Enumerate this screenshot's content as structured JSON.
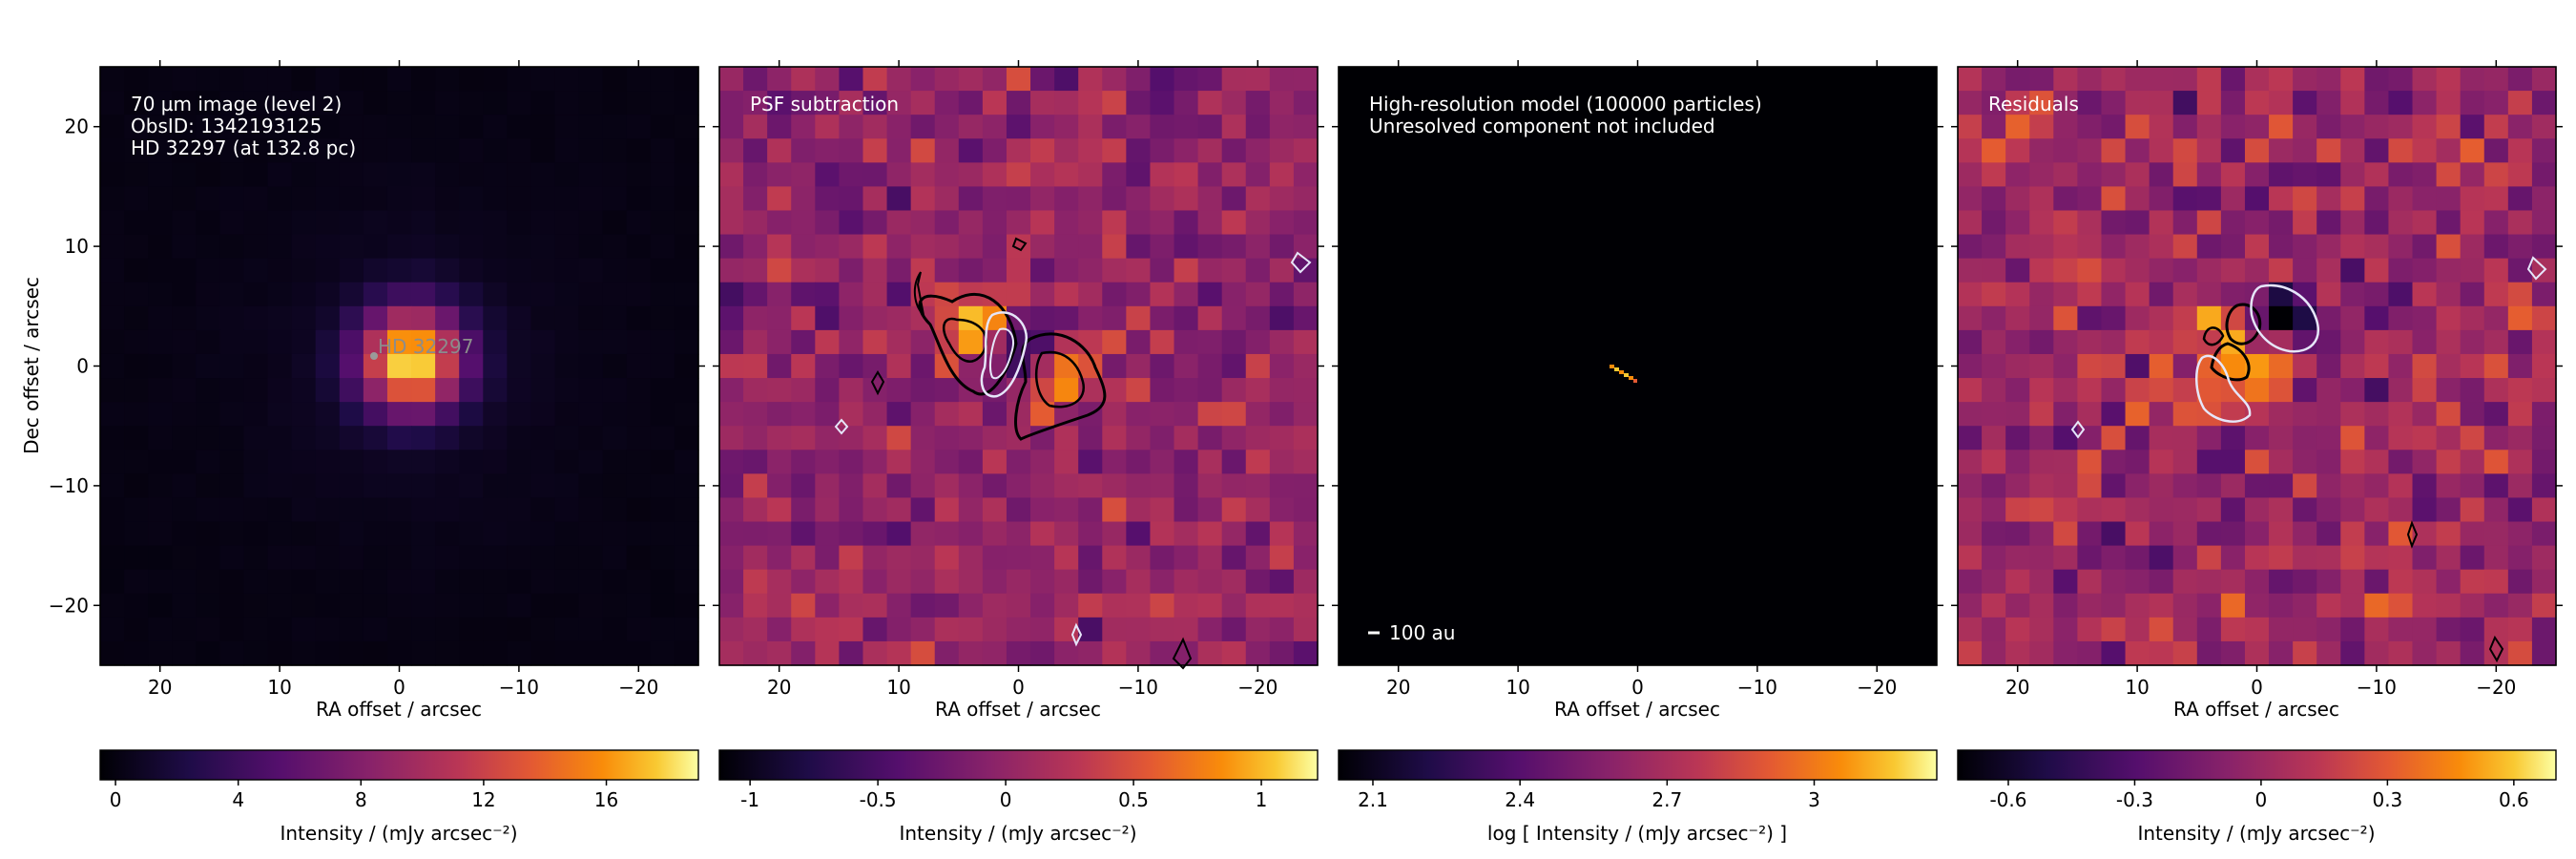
{
  "chart_data": [
    {
      "type": "heatmap",
      "title": "",
      "annotations": [
        "70 µm image (level 2)",
        "ObsID: 1342193125",
        "HD 32297 (at 132.8 pc)"
      ],
      "source_label": "HD 32297",
      "xlabel": "RA offset / arcsec",
      "ylabel": "Dec offset / arcsec",
      "xlim": [
        25,
        -25
      ],
      "ylim": [
        -25,
        25
      ],
      "xticks": [
        20,
        10,
        0,
        -10,
        -20
      ],
      "xtick_labels": [
        "20",
        "10",
        "0",
        "−10",
        "−20"
      ],
      "yticks": [
        20,
        10,
        0,
        -10,
        -20
      ],
      "ytick_labels": [
        "20",
        "10",
        "0",
        "−10",
        "−20"
      ],
      "peak": {
        "x": -1.0,
        "y": 0.5,
        "value": 18.0
      },
      "colormap": "inferno",
      "colorbar": {
        "label": "Intensity / (mJy arcsec⁻²)",
        "range": [
          -0.5,
          19.0
        ],
        "ticks": [
          0,
          4,
          8,
          12,
          16
        ],
        "tick_labels": [
          "0",
          "4",
          "8",
          "12",
          "16"
        ]
      }
    },
    {
      "type": "heatmap",
      "title": "",
      "annotations": [
        "PSF subtraction"
      ],
      "xlabel": "RA offset / arcsec",
      "xlim": [
        25,
        -25
      ],
      "ylim": [
        -25,
        25
      ],
      "xticks": [
        20,
        10,
        0,
        -10,
        -20
      ],
      "xtick_labels": [
        "20",
        "10",
        "0",
        "−10",
        "−20"
      ],
      "blobs": [
        {
          "x": 3.0,
          "y": 3.0,
          "value": 1.15
        },
        {
          "x": -3.5,
          "y": -1.0,
          "value": 1.1
        },
        {
          "x": 0.0,
          "y": 1.0,
          "value": -1.1
        }
      ],
      "contours_black": [
        {
          "x": 3.0,
          "y": 3.0
        },
        {
          "x": -4.0,
          "y": -2.0
        }
      ],
      "contours_white": [
        {
          "x": 0.0,
          "y": 1.0
        }
      ],
      "colormap": "inferno",
      "colorbar": {
        "label": "Intensity / (mJy arcsec⁻²)",
        "range": [
          -1.12,
          1.22
        ],
        "ticks": [
          -1,
          -0.5,
          0,
          0.5,
          1
        ],
        "tick_labels": [
          "-1",
          "-0.5",
          "0",
          "0.5",
          "1"
        ]
      }
    },
    {
      "type": "heatmap",
      "title": "",
      "annotations": [
        "High-resolution model (100000 particles)",
        "Unresolved component not included"
      ],
      "scalebar_label": "100 au",
      "xlabel": "RA offset / arcsec",
      "xlim": [
        25,
        -25
      ],
      "ylim": [
        -25,
        25
      ],
      "xticks": [
        20,
        10,
        0,
        -10,
        -20
      ],
      "xtick_labels": [
        "20",
        "10",
        "0",
        "−10",
        "−20"
      ],
      "colormap": "inferno",
      "colorbar": {
        "label": "log [ Intensity / (mJy arcsec⁻²) ]",
        "range": [
          2.03,
          3.25
        ],
        "ticks": [
          2.1,
          2.4,
          2.7,
          3.0
        ],
        "tick_labels": [
          "2.1",
          "2.4",
          "2.7",
          "3"
        ]
      }
    },
    {
      "type": "heatmap",
      "title": "",
      "annotations": [
        "Residuals"
      ],
      "xlabel": "RA offset / arcsec",
      "xlim": [
        25,
        -25
      ],
      "ylim": [
        -25,
        25
      ],
      "xticks": [
        20,
        10,
        0,
        -10,
        -20
      ],
      "xtick_labels": [
        "20",
        "10",
        "0",
        "−10",
        "−20"
      ],
      "blobs": [
        {
          "x": -1.0,
          "y": 0.5,
          "value": 0.65
        },
        {
          "x": 2.5,
          "y": 2.0,
          "value": 0.5
        },
        {
          "x": -2.0,
          "y": 3.0,
          "value": -0.7
        }
      ],
      "colormap": "inferno",
      "colorbar": {
        "label": "Intensity / (mJy arcsec⁻²)",
        "range": [
          -0.72,
          0.7
        ],
        "ticks": [
          -0.6,
          -0.3,
          0,
          0.3,
          0.6
        ],
        "tick_labels": [
          "-0.6",
          "-0.3",
          "0",
          "0.3",
          "0.6"
        ]
      }
    }
  ]
}
